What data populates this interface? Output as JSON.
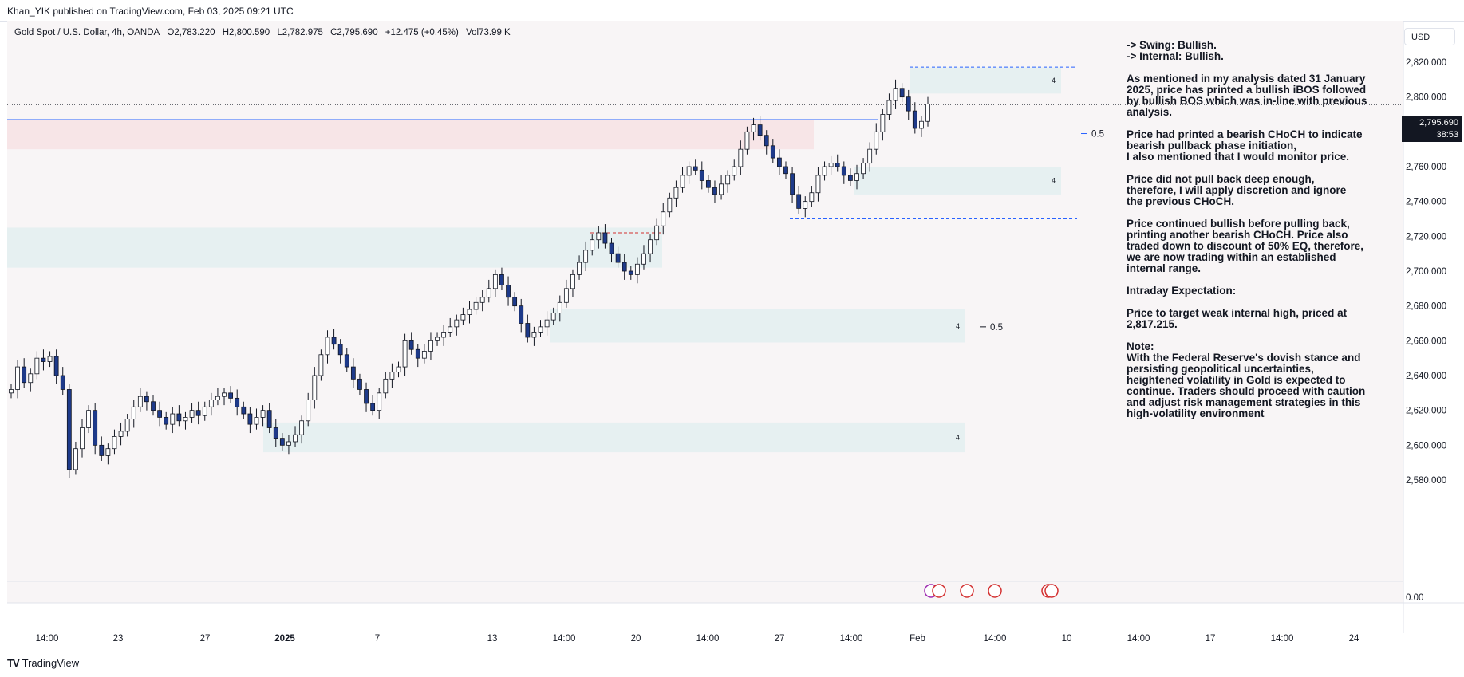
{
  "header": {
    "published": "Khan_YIK published on TradingView.com, Feb 03, 2025 09:21 UTC"
  },
  "symbol": {
    "name": "Gold Spot / U.S. Dollar, 4h, OANDA",
    "open": "O2,783.220",
    "high": "H2,800.590",
    "low": "L2,782.975",
    "close": "C2,795.690",
    "change": "+12.475 (+0.45%)",
    "volume": "Vol73.99 K"
  },
  "currency_button": "USD",
  "current_price": {
    "value": "2,795.690",
    "countdown": "38:53"
  },
  "footer": {
    "brand": "TradingView"
  },
  "notes": [
    {
      "lines": [
        "-> Swing:  Bullish.",
        "-> Internal:  Bullish."
      ]
    },
    {
      "lines": [
        "As mentioned in my analysis dated 31 January",
        "2025, price has printed a bullish iBOS followed",
        "by bullish BOS which was in-line with previous",
        "analysis."
      ]
    },
    {
      "lines": [
        "Price had printed a bearish CHoCH to indicate",
        "bearish pullback phase initiation,",
        "I also mentioned that I would monitor price."
      ]
    },
    {
      "lines": [
        "Price did not pull back deep enough,",
        "therefore,  I will apply discretion and ignore",
        "the previous CHoCH."
      ]
    },
    {
      "lines": [
        "Price continued bullish before pulling back,",
        "printing another bearish CHoCH.  Price also",
        "traded down to discount of 50% EQ, therefore,",
        "we are now trading within an established",
        "internal range."
      ]
    },
    {
      "lines": [
        "Intraday Expectation:"
      ]
    },
    {
      "lines": [
        "Price to target weak internal high, priced at",
        "2,817.215."
      ]
    },
    {
      "lines": [
        "Note:",
        "With the Federal Reserve's dovish stance and",
        "persisting geopolitical uncertainties,",
        "heightened volatility in Gold is expected to",
        "continue. Traders should proceed with caution",
        "and adjust risk management strategies in this",
        "high-volatility environment"
      ]
    }
  ],
  "chart_data": {
    "type": "candlestick",
    "symbol": "Gold Spot / U.S. Dollar",
    "timeframe": "4h",
    "y_ticks": [
      "2,820.000",
      "2,800.000",
      "2,780.000",
      "2,760.000",
      "2,740.000",
      "2,720.000",
      "2,700.000",
      "2,680.000",
      "2,660.000",
      "2,640.000",
      "2,620.000",
      "2,600.000",
      "2,580.000"
    ],
    "volume_tick": "0.00",
    "ylim": [
      2570,
      2825
    ],
    "x_ticks": [
      "14:00",
      "23",
      "27",
      "2025",
      "7",
      "13",
      "14:00",
      "20",
      "14:00",
      "27",
      "14:00",
      "Feb",
      "14:00",
      "10",
      "14:00",
      "17",
      "14:00",
      "24"
    ],
    "closes": [
      2632,
      2645,
      2636,
      2641,
      2650,
      2648,
      2651,
      2640,
      2632,
      2586,
      2598,
      2610,
      2620,
      2600,
      2594,
      2598,
      2605,
      2608,
      2615,
      2622,
      2628,
      2625,
      2620,
      2616,
      2612,
      2618,
      2614,
      2616,
      2620,
      2617,
      2622,
      2626,
      2628,
      2630,
      2627,
      2622,
      2618,
      2612,
      2616,
      2620,
      2610,
      2604,
      2600,
      2602,
      2606,
      2614,
      2626,
      2640,
      2652,
      2662,
      2658,
      2652,
      2645,
      2638,
      2632,
      2624,
      2620,
      2630,
      2638,
      2642,
      2645,
      2660,
      2655,
      2650,
      2654,
      2660,
      2662,
      2665,
      2668,
      2672,
      2675,
      2678,
      2682,
      2685,
      2690,
      2698,
      2692,
      2685,
      2680,
      2670,
      2662,
      2665,
      2668,
      2672,
      2676,
      2682,
      2690,
      2698,
      2705,
      2712,
      2718,
      2722,
      2716,
      2710,
      2705,
      2700,
      2698,
      2704,
      2710,
      2718,
      2726,
      2734,
      2742,
      2748,
      2755,
      2760,
      2758,
      2752,
      2748,
      2744,
      2750,
      2755,
      2760,
      2770,
      2780,
      2784,
      2778,
      2772,
      2765,
      2760,
      2756,
      2744,
      2736,
      2740,
      2745,
      2755,
      2760,
      2762,
      2760,
      2755,
      2752,
      2756,
      2762,
      2770,
      2780,
      2790,
      2798,
      2805,
      2800,
      2792,
      2782,
      2786,
      2796
    ],
    "price_line": 2795.69,
    "zones": [
      {
        "label": "4",
        "range": [
          2802,
          2817
        ]
      },
      {
        "label": "4",
        "range": [
          2744,
          2760
        ]
      },
      {
        "label": "4",
        "range": [
          2659,
          2678
        ]
      },
      {
        "label": "4",
        "range": [
          2596,
          2613
        ]
      },
      {
        "label": "",
        "range": [
          2702,
          2725
        ]
      },
      {
        "label": "",
        "range": [
          2770,
          2787
        ]
      }
    ],
    "levels": [
      {
        "label": "0.5",
        "value": 2779
      },
      {
        "label": "0.5",
        "value": 2668
      },
      {
        "label": "",
        "value": 2817.215
      },
      {
        "label": "",
        "value": 2730
      },
      {
        "label": "",
        "value": 2722
      },
      {
        "label": "",
        "value": 2787
      }
    ],
    "grid": false
  }
}
